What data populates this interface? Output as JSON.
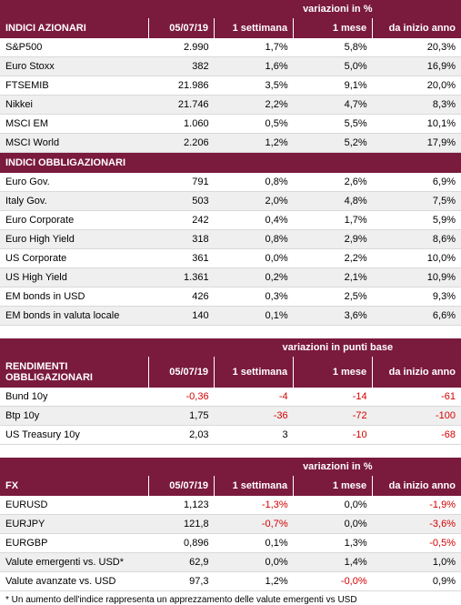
{
  "colors": {
    "header_bg": "#7a1a3d",
    "header_fg": "#ffffff",
    "row_odd": "#ffffff",
    "row_even": "#efefef",
    "border": "#d9d9d9",
    "negative": "#d40000"
  },
  "table1": {
    "super_header": "variazioni in %",
    "columns": [
      "INDICI AZIONARI",
      "05/07/19",
      "1 settimana",
      "1 mese",
      "da inizio anno"
    ],
    "section2_label": "INDICI OBBLIGAZIONARI",
    "rows1": [
      {
        "label": "S&P500",
        "v": "2.990",
        "w": "1,7%",
        "m": "5,8%",
        "y": "20,3%"
      },
      {
        "label": "Euro Stoxx",
        "v": "382",
        "w": "1,6%",
        "m": "5,0%",
        "y": "16,9%"
      },
      {
        "label": "FTSEMIB",
        "v": "21.986",
        "w": "3,5%",
        "m": "9,1%",
        "y": "20,0%"
      },
      {
        "label": "Nikkei",
        "v": "21.746",
        "w": "2,2%",
        "m": "4,7%",
        "y": "8,3%"
      },
      {
        "label": "MSCI EM",
        "v": "1.060",
        "w": "0,5%",
        "m": "5,5%",
        "y": "10,1%"
      },
      {
        "label": "MSCI World",
        "v": "2.206",
        "w": "1,2%",
        "m": "5,2%",
        "y": "17,9%"
      }
    ],
    "rows2": [
      {
        "label": "Euro Gov.",
        "v": "791",
        "w": "0,8%",
        "m": "2,6%",
        "y": "6,9%"
      },
      {
        "label": "Italy Gov.",
        "v": "503",
        "w": "2,0%",
        "m": "4,8%",
        "y": "7,5%"
      },
      {
        "label": "Euro Corporate",
        "v": "242",
        "w": "0,4%",
        "m": "1,7%",
        "y": "5,9%"
      },
      {
        "label": "Euro High Yield",
        "v": "318",
        "w": "0,8%",
        "m": "2,9%",
        "y": "8,6%"
      },
      {
        "label": "US Corporate",
        "v": "361",
        "w": "0,0%",
        "m": "2,2%",
        "y": "10,0%"
      },
      {
        "label": "US High Yield",
        "v": "1.361",
        "w": "0,2%",
        "m": "2,1%",
        "y": "10,9%"
      },
      {
        "label": "EM bonds in USD",
        "v": "426",
        "w": "0,3%",
        "m": "2,5%",
        "y": "9,3%"
      },
      {
        "label": "EM bonds in valuta locale",
        "v": "140",
        "w": "0,1%",
        "m": "3,6%",
        "y": "6,6%"
      }
    ]
  },
  "table2": {
    "super_header": "variazioni in punti base",
    "columns": [
      "RENDIMENTI OBBLIGAZIONARI",
      "05/07/19",
      "1 settimana",
      "1 mese",
      "da inizio anno"
    ],
    "rows": [
      {
        "label": "Bund 10y",
        "v": "-0,36",
        "vneg": true,
        "w": "-4",
        "wneg": true,
        "m": "-14",
        "mneg": true,
        "y": "-61",
        "yneg": true
      },
      {
        "label": "Btp 10y",
        "v": "1,75",
        "vneg": false,
        "w": "-36",
        "wneg": true,
        "m": "-72",
        "mneg": true,
        "y": "-100",
        "yneg": true
      },
      {
        "label": "US Treasury 10y",
        "v": "2,03",
        "vneg": false,
        "w": "3",
        "wneg": false,
        "m": "-10",
        "mneg": true,
        "y": "-68",
        "yneg": true
      }
    ]
  },
  "table3": {
    "super_header": "variazioni in %",
    "columns": [
      "FX",
      "05/07/19",
      "1 settimana",
      "1 mese",
      "da inizio anno"
    ],
    "rows": [
      {
        "label": "EURUSD",
        "v": "1,123",
        "w": "-1,3%",
        "wneg": true,
        "m": "0,0%",
        "y": "-1,9%",
        "yneg": true
      },
      {
        "label": "EURJPY",
        "v": "121,8",
        "w": "-0,7%",
        "wneg": true,
        "m": "0,0%",
        "y": "-3,6%",
        "yneg": true
      },
      {
        "label": "EURGBP",
        "v": "0,896",
        "w": "0,1%",
        "m": "1,3%",
        "y": "-0,5%",
        "yneg": true
      },
      {
        "label": "Valute emergenti vs. USD*",
        "v": "62,9",
        "w": "0,0%",
        "m": "1,4%",
        "y": "1,0%"
      },
      {
        "label": "Valute avanzate vs. USD",
        "v": "97,3",
        "w": "1,2%",
        "m": "-0,0%",
        "mneg": true,
        "y": "0,9%"
      }
    ],
    "footnote": "* Un aumento dell'indice rappresenta un apprezzamento delle valute emergenti vs USD"
  }
}
